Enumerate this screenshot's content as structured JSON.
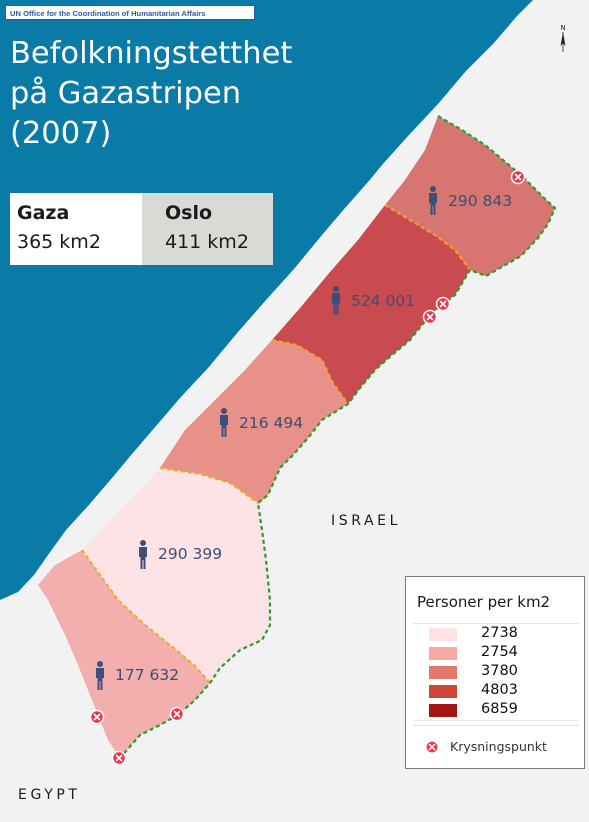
{
  "source": "UN Office for the Coordination of Humanitarian Affairs",
  "title_lines": [
    "Befolkningstetthet",
    "på Gazastripen",
    "(2007)"
  ],
  "areas": [
    {
      "name": "Gaza",
      "size": "365 km2"
    },
    {
      "name": "Oslo",
      "size": "411 km2"
    }
  ],
  "regions": [
    {
      "population": "290 843",
      "density_class": 3780
    },
    {
      "population": "524 001",
      "density_class": 4803
    },
    {
      "population": "216 494",
      "density_class": 2754
    },
    {
      "population": "290 399",
      "density_class": 2738
    },
    {
      "population": "177 632",
      "density_class": 2754
    }
  ],
  "countries": {
    "israel": "ISRAEL",
    "egypt": "EGYPT"
  },
  "legend": {
    "title": "Personer per km2",
    "items": [
      {
        "value": "2738",
        "color": "#fde3e3"
      },
      {
        "value": "2754",
        "color": "#f5a9a3"
      },
      {
        "value": "3780",
        "color": "#e2786c"
      },
      {
        "value": "4803",
        "color": "#cf4436"
      },
      {
        "value": "6859",
        "color": "#a31414"
      }
    ],
    "crossing_label": "Krysningspunkt"
  },
  "colors": {
    "sea": "#0a7aa6",
    "land": "#f2f2f2",
    "region_north": "#d77570",
    "region_gaza_city": "#c94b4f",
    "region_middle": "#e89189",
    "region_khan_younis": "#fde3e5",
    "region_rafah": "#f3aeae",
    "internal_border": "#f2a81d",
    "outer_border": "#2d9a2d",
    "crossing": "#e8384f",
    "person": "#3a4f7a"
  }
}
